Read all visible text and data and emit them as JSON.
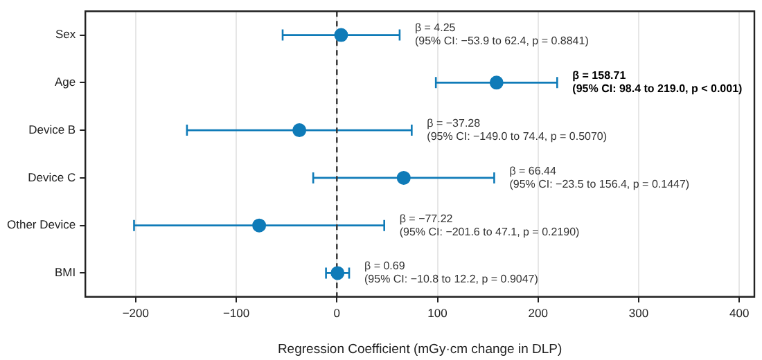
{
  "chart_data": {
    "type": "scatter",
    "orientation": "horizontal",
    "categories": [
      "Sex",
      "Age",
      "Device B",
      "Device C",
      "Other Device",
      "BMI"
    ],
    "values": [
      4.25,
      158.71,
      -37.28,
      66.44,
      -77.22,
      0.69
    ],
    "errors": [
      [
        -53.9,
        62.4
      ],
      [
        98.4,
        219.0
      ],
      [
        -149.0,
        74.4
      ],
      [
        -23.5,
        156.4
      ],
      [
        -201.6,
        47.1
      ],
      [
        -10.8,
        12.2
      ]
    ],
    "color": "#0f7bb8",
    "xlabel": "Regression Coefficient (mGy·cm change in DLP)",
    "xlim": [
      -250,
      415
    ],
    "xticks": [
      -200,
      -100,
      0,
      100,
      200,
      300,
      400
    ],
    "grid": "x",
    "marker": "circle",
    "ref_lines": [
      {
        "axis": "x",
        "value": 0,
        "line_style": "dashed",
        "color": "#333333"
      }
    ],
    "annotations": [
      "β = 4.25\n(95% CI: −53.9 to 62.4, p = 0.8841)",
      "β = 158.71\n(95% CI: 98.4 to 219.0, p < 0.001)",
      "β = −37.28\n(95% CI: −149.0 to 74.4, p = 0.5070)",
      "β = 66.44\n(95% CI: −23.5 to 156.4, p = 0.1447)",
      "β = −77.22\n(95% CI: −201.6 to 47.1, p = 0.2190)",
      "β = 0.69\n(95% CI: −10.8 to 12.2, p = 0.9047)"
    ]
  }
}
